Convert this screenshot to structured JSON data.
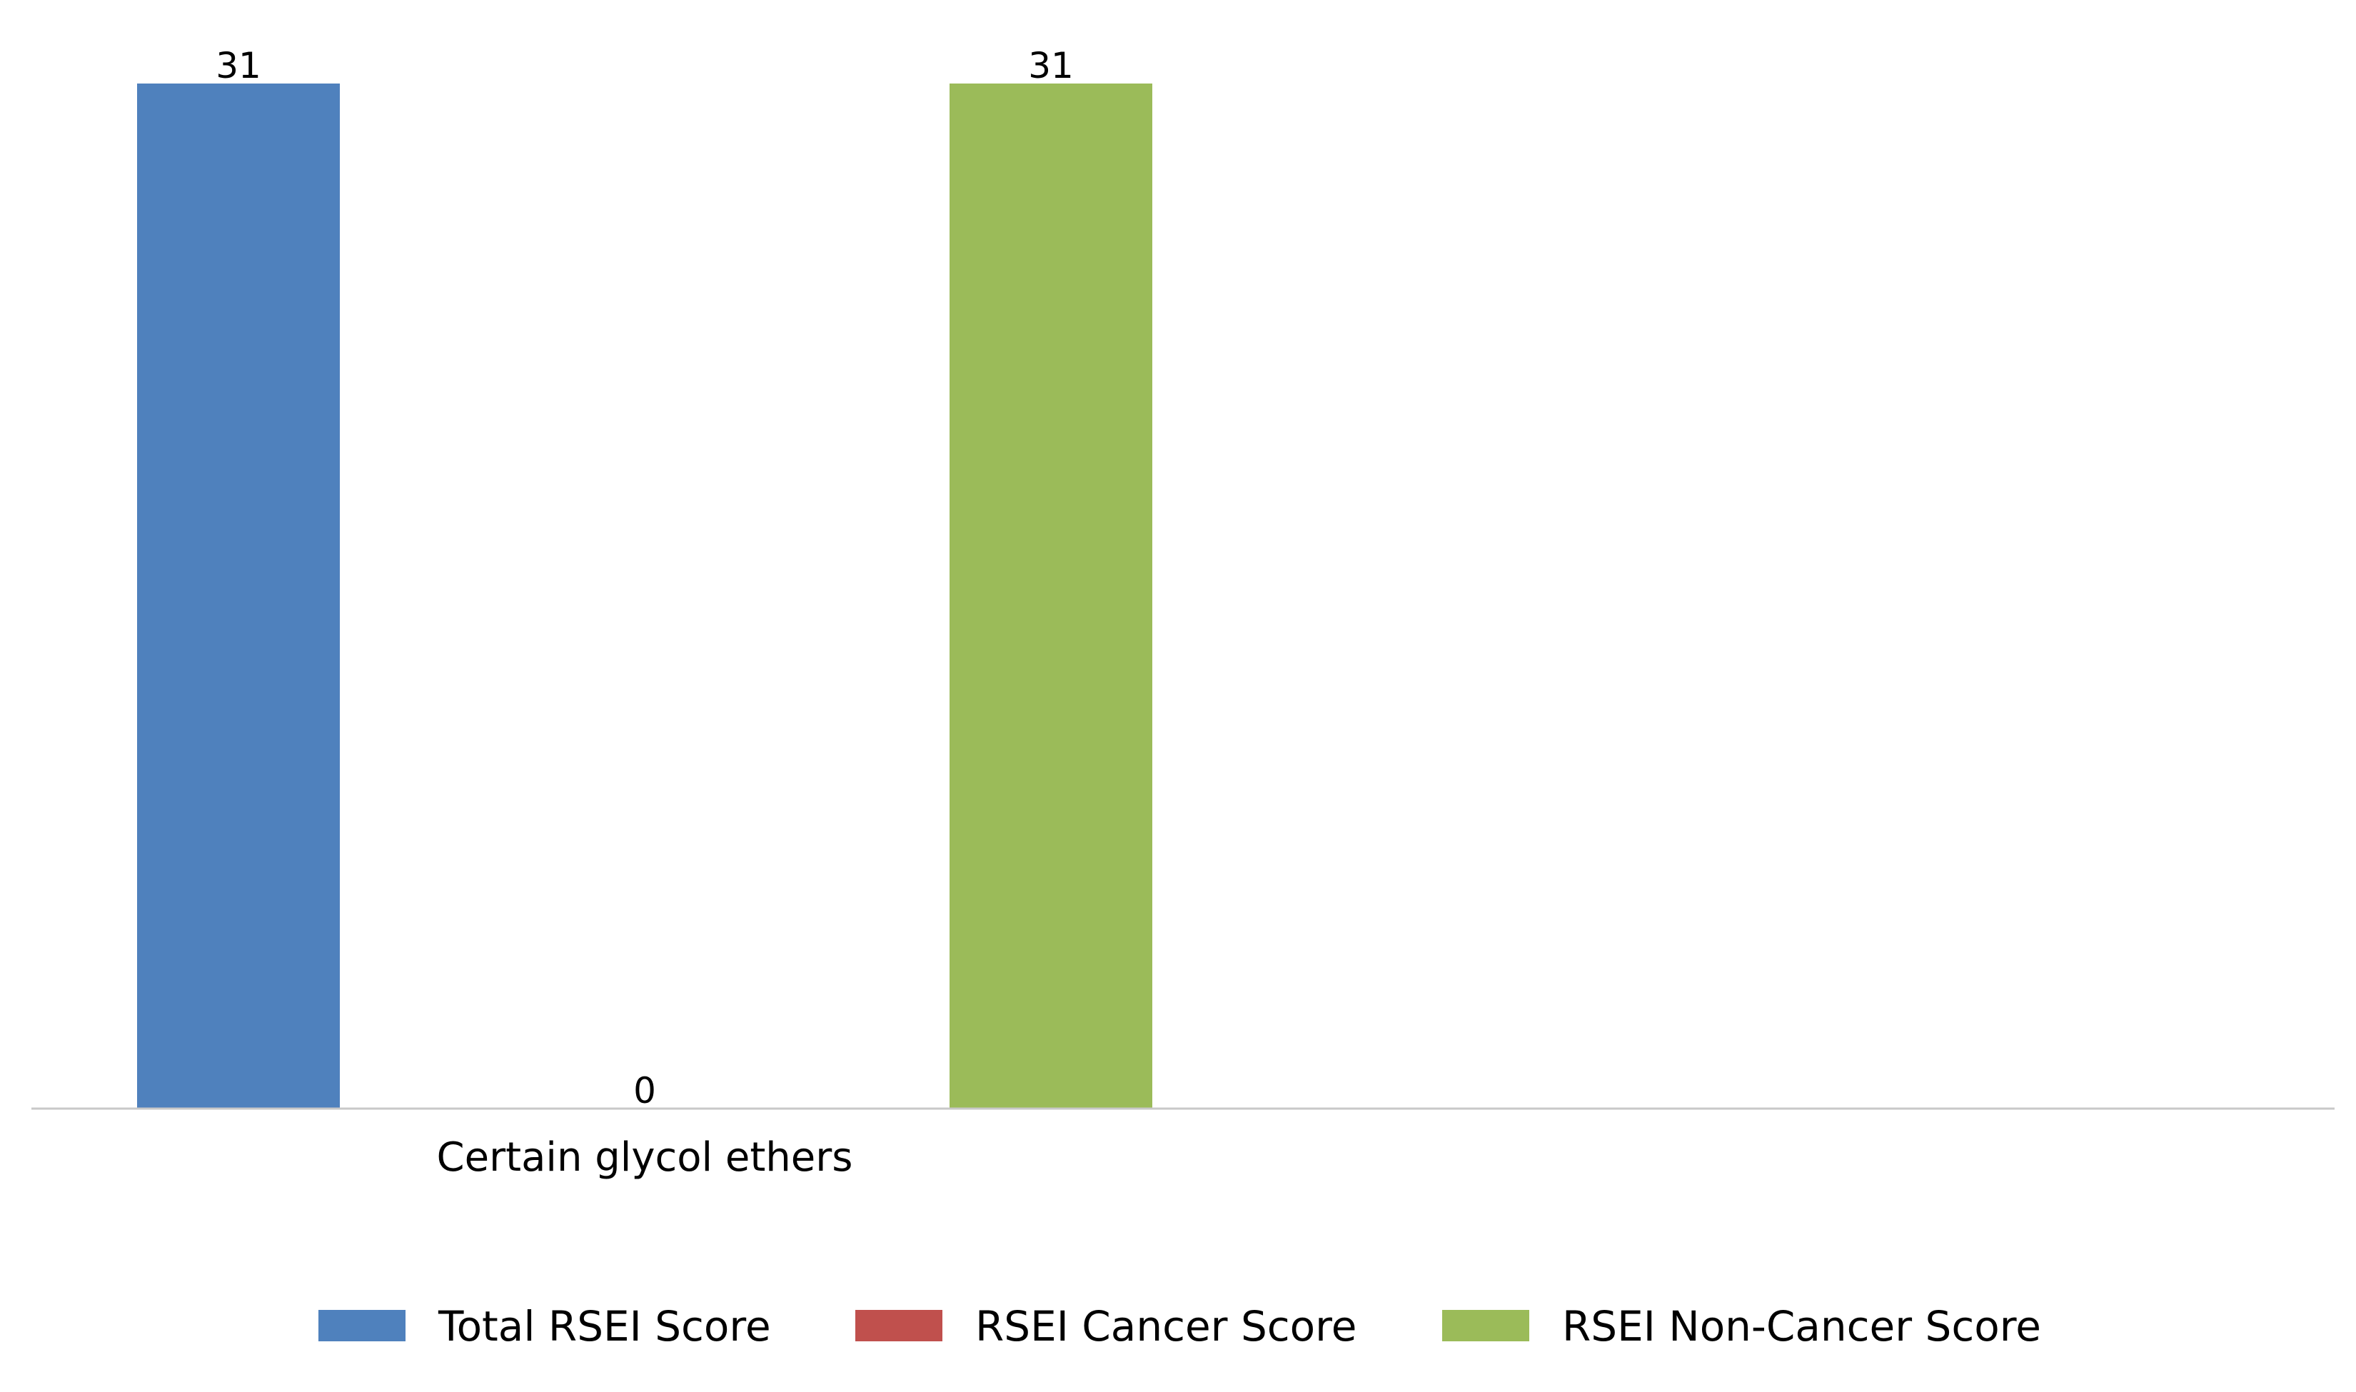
{
  "chart_data": {
    "type": "bar",
    "title": "",
    "xlabel": "",
    "ylabel": "",
    "categories": [
      "Certain glycol ethers"
    ],
    "series": [
      {
        "name": "Total RSEI Score",
        "values": [
          31
        ],
        "color": "#4f81bd"
      },
      {
        "name": "RSEI Cancer Score",
        "values": [
          0
        ],
        "color": "#c0504d"
      },
      {
        "name": "RSEI Non-Cancer Score",
        "values": [
          31
        ],
        "color": "#9bbb59"
      }
    ],
    "ylim": [
      0,
      31
    ],
    "grid": false,
    "y_axis_visible": false,
    "legend_position": "bottom",
    "axis_color": "#c8c8c8"
  }
}
